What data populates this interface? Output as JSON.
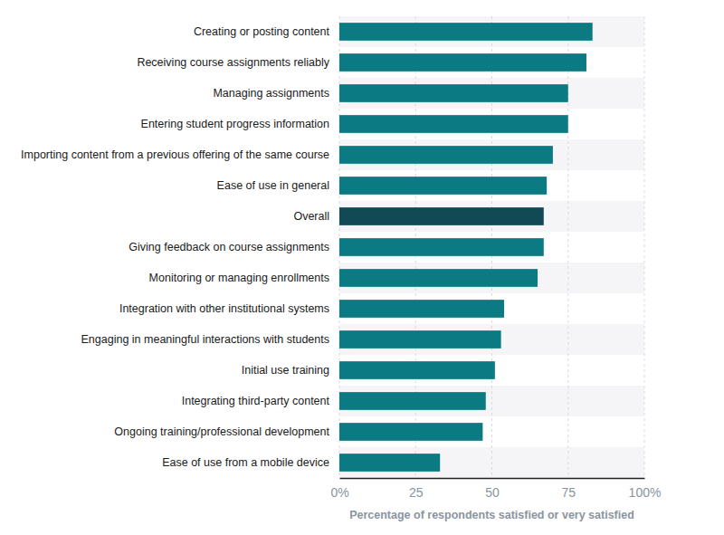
{
  "chart_data": {
    "type": "bar",
    "orientation": "horizontal",
    "categories": [
      "Creating or posting content",
      "Receiving course assignments reliably",
      "Managing assignments",
      "Entering student progress information",
      "Importing content from a previous offering of the same course",
      "Ease of use in general",
      "Overall",
      "Giving feedback on course assignments",
      "Monitoring or managing enrollments",
      "Integration with other institutional systems",
      "Engaging in meaningful interactions with students",
      "Initial use training",
      "Integrating third-party content",
      "Ongoing training/professional development",
      "Ease of use from a mobile device"
    ],
    "values": [
      83,
      81,
      75,
      75,
      70,
      68,
      67,
      67,
      65,
      54,
      53,
      51,
      48,
      47,
      33
    ],
    "colors": [
      "#0b7a83",
      "#0b7a83",
      "#0b7a83",
      "#0b7a83",
      "#0b7a83",
      "#0b7a83",
      "#114a54",
      "#0b7a83",
      "#0b7a83",
      "#0b7a83",
      "#0b7a83",
      "#0b7a83",
      "#0b7a83",
      "#0b7a83",
      "#0b7a83"
    ],
    "xlabel": "Percentage of respondents satisfied or very satisfied",
    "xlim": [
      0,
      100
    ],
    "xticks": [
      {
        "value": 0,
        "label": "0%"
      },
      25,
      50,
      75,
      {
        "value": 100,
        "label": "100%"
      }
    ],
    "grid": true
  }
}
